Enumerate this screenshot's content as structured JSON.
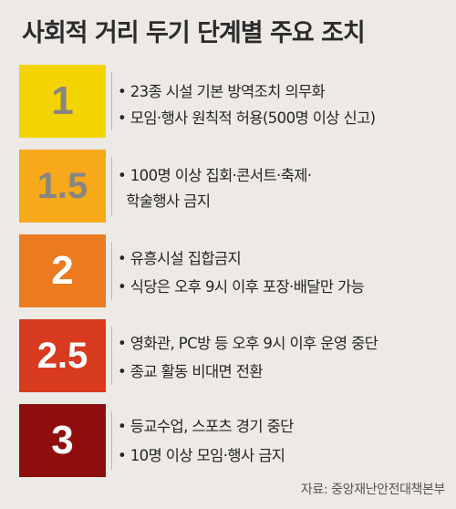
{
  "title": "사회적 거리 두기 단계별 주요 조치",
  "stages": [
    {
      "level": "1",
      "color": "#f4d400",
      "text_color": "#8a8580",
      "measures": [
        "• 23종 시설 기본 방역조치 의무화",
        "• 모임·행사 원칙적 허용(500명 이상 신고)"
      ]
    },
    {
      "level": "1.5",
      "color": "#f7a91a",
      "text_color": "#8a8580",
      "measures": [
        "• 100명 이상 집회·콘서트·축제·",
        "  학술행사 금지"
      ]
    },
    {
      "level": "2",
      "color": "#ec7a1f",
      "text_color": "#ffffff",
      "measures": [
        "• 유흥시설 집합금지",
        "• 식당은 오후 9시 이후 포장·배달만 가능"
      ]
    },
    {
      "level": "2.5",
      "color": "#d83a1e",
      "text_color": "#ffffff",
      "measures": [
        "• 영화관, PC방 등 오후 9시 이후 운영 중단",
        "• 종교 활동 비대면 전환"
      ]
    },
    {
      "level": "3",
      "color": "#8e0e0e",
      "text_color": "#ffffff",
      "measures": [
        "• 등교수업, 스포츠 경기 중단",
        "• 10명 이상 모임·행사 금지"
      ]
    }
  ],
  "source": "자료: 중앙재난안전대책본부"
}
